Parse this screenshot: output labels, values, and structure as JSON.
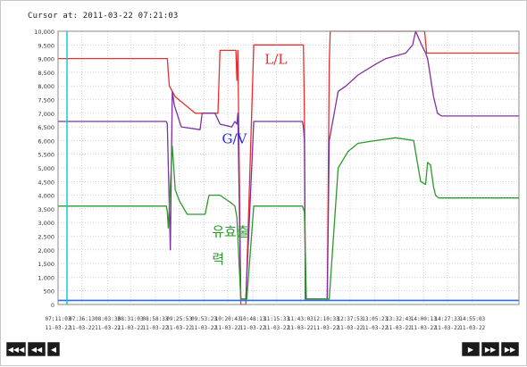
{
  "cursor": {
    "text": "Cursor at: 2011-03-22 07:21:03"
  },
  "navigation": {
    "first": "◀◀◀",
    "prev_page": "◀◀",
    "prev": "◀",
    "next": "▶",
    "next_page": "▶▶",
    "last": "▶▶"
  },
  "colors": {
    "ll": "#e83030",
    "gv": "#8030a0",
    "output": "#2a9a2a",
    "baseline": "#2a6ee8",
    "cursor": "#00c8e0"
  },
  "chart_data": {
    "type": "line",
    "title": "",
    "xlabel": "",
    "ylabel": "",
    "ylim": [
      0,
      10000
    ],
    "yticks": [
      "10,000",
      "9,500",
      "9,000",
      "8,500",
      "8,000",
      "7,500",
      "7,000",
      "6,500",
      "6,000",
      "5,500",
      "5,000",
      "4,500",
      "4,000",
      "3,500",
      "3,000",
      "2,500",
      "2,000",
      "1,500",
      "1,000",
      "500",
      "0"
    ],
    "xlim": [
      0,
      464
    ],
    "xticks": [
      {
        "t": 0,
        "time": "07:11:03",
        "date": "11-03-22"
      },
      {
        "t": 24,
        "time": "07:36:13",
        "date": "11-03-22"
      },
      {
        "t": 50,
        "time": "08:03:33",
        "date": "11-03-22"
      },
      {
        "t": 73,
        "time": "08:31:03",
        "date": "11-03-22"
      },
      {
        "t": 98,
        "time": "08:58:33",
        "date": "11-03-22"
      },
      {
        "t": 122,
        "time": "09:25:53",
        "date": "11-03-22"
      },
      {
        "t": 147,
        "time": "09:53:23",
        "date": "11-03-22"
      },
      {
        "t": 171,
        "time": "10:20:43",
        "date": "11-03-22"
      },
      {
        "t": 196,
        "time": "10:48:13",
        "date": "11-03-22"
      },
      {
        "t": 220,
        "time": "11:15:33",
        "date": "11-03-22"
      },
      {
        "t": 244,
        "time": "11:43:03",
        "date": "11-03-22"
      },
      {
        "t": 270,
        "time": "12:10:33",
        "date": "11-03-22"
      },
      {
        "t": 294,
        "time": "12:37:53",
        "date": "11-03-22"
      },
      {
        "t": 319,
        "time": "13:05:23",
        "date": "11-03-22"
      },
      {
        "t": 343,
        "time": "13:32:43",
        "date": "11-03-22"
      },
      {
        "t": 368,
        "time": "14:00:13",
        "date": "11-03-22"
      },
      {
        "t": 392,
        "time": "14:27:33",
        "date": "11-03-22"
      },
      {
        "t": 417,
        "time": "14:55:03",
        "date": "11-03-22"
      }
    ],
    "cursor_t": 9,
    "grid": true,
    "series": [
      {
        "name": "L/L",
        "x": [
          0,
          110,
          111,
          112,
          118,
          138,
          140,
          161,
          163,
          179,
          180,
          181,
          184,
          189,
          197,
          247,
          248,
          249,
          252,
          256,
          260,
          271,
          273,
          274,
          287,
          288,
          369,
          371,
          464
        ],
        "y": [
          9000,
          9000,
          8500,
          8000,
          7600,
          7000,
          7000,
          7000,
          9300,
          9300,
          8200,
          9300,
          0,
          0,
          9500,
          9500,
          7000,
          200,
          200,
          200,
          200,
          200,
          8800,
          10000,
          10000,
          10000,
          10000,
          9200,
          9200
        ]
      },
      {
        "name": "G/V",
        "x": [
          0,
          109,
          110,
          113,
          115,
          117,
          124,
          143,
          145,
          158,
          163,
          175,
          178,
          180,
          181,
          184,
          189,
          197,
          246,
          247,
          248,
          249,
          252,
          256,
          260,
          271,
          273,
          282,
          290,
          302,
          320,
          330,
          350,
          357,
          360,
          366,
          370,
          372,
          378,
          382,
          386,
          394,
          464
        ],
        "y": [
          6700,
          6700,
          6600,
          2000,
          7800,
          7300,
          6500,
          6400,
          7000,
          7000,
          6600,
          6500,
          6700,
          6600,
          7000,
          200,
          200,
          6700,
          6700,
          6500,
          6000,
          200,
          200,
          200,
          200,
          200,
          6000,
          7800,
          8000,
          8400,
          8800,
          9000,
          9200,
          9500,
          10000,
          9500,
          9200,
          9000,
          7600,
          7000,
          6900,
          6900,
          6900
        ]
      },
      {
        "name": "유효출력",
        "x": [
          0,
          109,
          110,
          111,
          115,
          118,
          122,
          130,
          148,
          152,
          163,
          175,
          178,
          180,
          184,
          190,
          197,
          246,
          248,
          250,
          255,
          260,
          271,
          273,
          282,
          292,
          302,
          320,
          340,
          358,
          365,
          370,
          372,
          375,
          378,
          380,
          383,
          386,
          394,
          464
        ],
        "y": [
          3600,
          3600,
          3400,
          2800,
          5800,
          4200,
          3800,
          3300,
          3300,
          4000,
          4000,
          3700,
          3600,
          3200,
          200,
          200,
          3600,
          3600,
          3400,
          200,
          200,
          200,
          200,
          200,
          5000,
          5600,
          5900,
          6000,
          6100,
          6000,
          4500,
          4400,
          5200,
          5100,
          4300,
          4000,
          3900,
          3900,
          3900,
          3900
        ]
      },
      {
        "name": "baseline",
        "x": [
          0,
          464
        ],
        "y": [
          150,
          150
        ]
      }
    ],
    "annotations": [
      {
        "text": "L/L",
        "t": 208,
        "v": 8800
      },
      {
        "text": "G/V",
        "t": 165,
        "v": 5900
      },
      {
        "text": "유효출",
        "t": 155,
        "v": 2500
      },
      {
        "text": "력",
        "t": 155,
        "v": 1500
      }
    ]
  }
}
